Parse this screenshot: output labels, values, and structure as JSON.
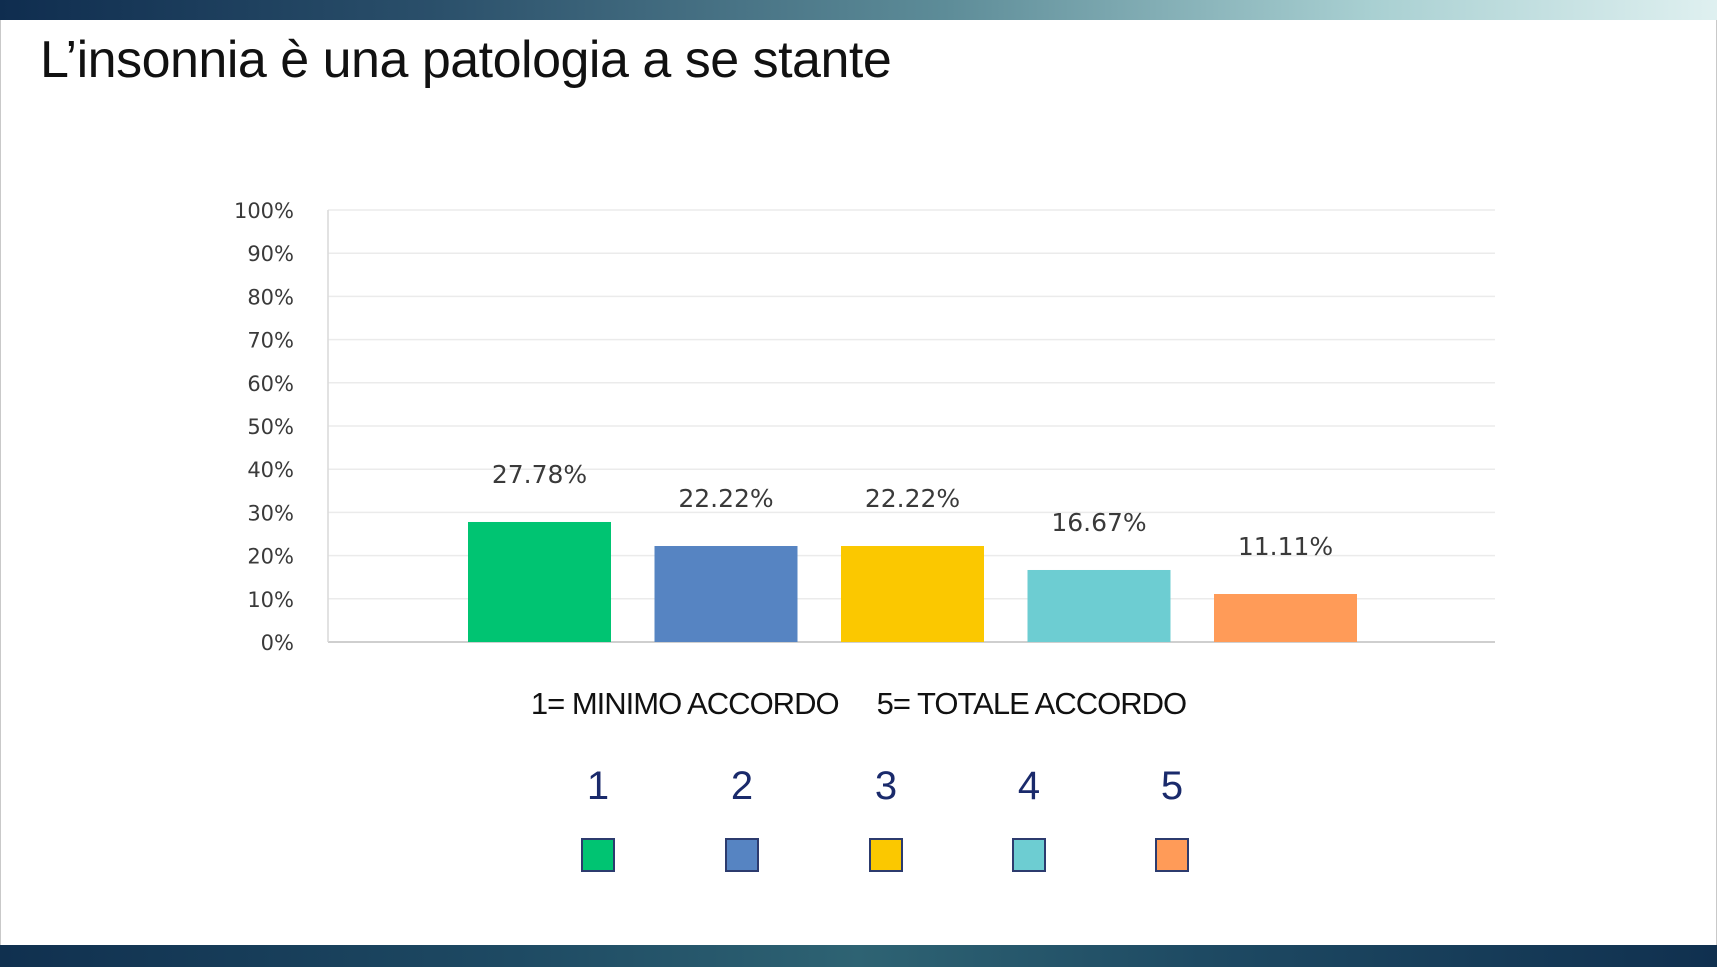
{
  "title": "L’insonnia è una patologia a se stante",
  "chart_data": {
    "type": "bar",
    "categories": [
      "1",
      "2",
      "3",
      "4",
      "5"
    ],
    "values": [
      27.78,
      22.22,
      22.22,
      16.67,
      11.11
    ],
    "data_labels": [
      "27.78%",
      "22.22%",
      "22.22%",
      "16.67%",
      "11.11%"
    ],
    "colors": [
      "#00c472",
      "#5684c2",
      "#fbc800",
      "#6dcdd2",
      "#ff9b58"
    ],
    "ylim": [
      0,
      100
    ],
    "yticks": [
      "0%",
      "10%",
      "20%",
      "30%",
      "40%",
      "50%",
      "60%",
      "70%",
      "80%",
      "90%",
      "100%"
    ],
    "grid": true
  },
  "scale_note": "1= MINIMO ACCORDO     5= TOTALE ACCORDO",
  "legend": [
    {
      "label": "1",
      "color": "#00c472"
    },
    {
      "label": "2",
      "color": "#5684c2"
    },
    {
      "label": "3",
      "color": "#fbc800"
    },
    {
      "label": "4",
      "color": "#6dcdd2"
    },
    {
      "label": "5",
      "color": "#ff9b58"
    }
  ]
}
